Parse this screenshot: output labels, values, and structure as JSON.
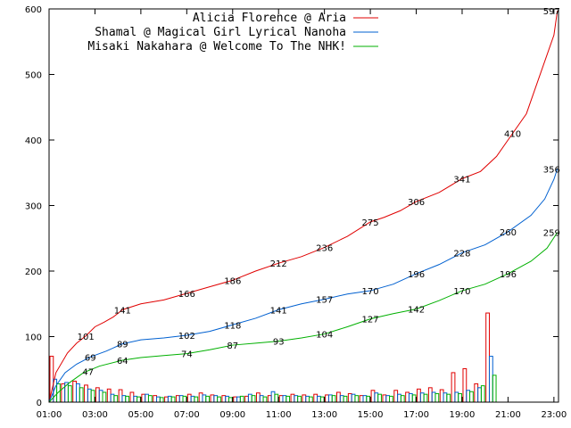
{
  "chart_data": {
    "type": "line",
    "title": "",
    "xlabel": "",
    "ylabel": "",
    "xlim_hours": [
      1,
      23.2
    ],
    "ylim": [
      0,
      600
    ],
    "x_ticks": [
      "01:00",
      "03:00",
      "05:00",
      "07:00",
      "09:00",
      "11:00",
      "13:00",
      "15:00",
      "17:00",
      "19:00",
      "21:00",
      "23:00"
    ],
    "y_ticks": [
      0,
      100,
      200,
      300,
      400,
      500,
      600
    ],
    "legend_position": "top-right",
    "grid": false,
    "series": [
      {
        "name": "Alicia Florence @ Aria",
        "color": "#e00000",
        "points": [
          [
            1,
            0
          ],
          [
            1.3,
            45
          ],
          [
            1.8,
            75
          ],
          [
            2.2,
            90
          ],
          [
            2.6,
            101
          ],
          [
            3.0,
            115
          ],
          [
            3.4,
            122
          ],
          [
            3.8,
            130
          ],
          [
            4.2,
            141
          ],
          [
            5.0,
            150
          ],
          [
            6.0,
            156
          ],
          [
            7.0,
            166
          ],
          [
            8.0,
            176
          ],
          [
            9.0,
            186
          ],
          [
            10.0,
            200
          ],
          [
            11.0,
            212
          ],
          [
            12.0,
            222
          ],
          [
            13.0,
            236
          ],
          [
            14.0,
            253
          ],
          [
            15.0,
            275
          ],
          [
            15.6,
            282
          ],
          [
            16.3,
            292
          ],
          [
            17.0,
            306
          ],
          [
            18.0,
            320
          ],
          [
            19.0,
            341
          ],
          [
            19.8,
            352
          ],
          [
            20.5,
            375
          ],
          [
            21.2,
            410
          ],
          [
            21.8,
            440
          ],
          [
            22.3,
            490
          ],
          [
            22.7,
            530
          ],
          [
            23.0,
            560
          ],
          [
            23.15,
            597
          ]
        ],
        "labels": [
          [
            2.6,
            101
          ],
          [
            4.2,
            141
          ],
          [
            7.0,
            166
          ],
          [
            9.0,
            186
          ],
          [
            11.0,
            212
          ],
          [
            13.0,
            236
          ],
          [
            15.0,
            275
          ],
          [
            17.0,
            306
          ],
          [
            19.0,
            341
          ],
          [
            21.2,
            410
          ],
          [
            22.9,
            597
          ]
        ]
      },
      {
        "name": "Shamal @ Magical Girl Lyrical Nanoha",
        "color": "#0060d0",
        "points": [
          [
            1,
            0
          ],
          [
            1.3,
            25
          ],
          [
            1.7,
            45
          ],
          [
            2.2,
            58
          ],
          [
            2.8,
            69
          ],
          [
            3.5,
            78
          ],
          [
            4.2,
            89
          ],
          [
            5.0,
            95
          ],
          [
            6.0,
            98
          ],
          [
            7.0,
            102
          ],
          [
            8.0,
            108
          ],
          [
            9.0,
            118
          ],
          [
            10.0,
            128
          ],
          [
            11.0,
            141
          ],
          [
            12.0,
            150
          ],
          [
            13.0,
            157
          ],
          [
            14.0,
            165
          ],
          [
            15.0,
            170
          ],
          [
            16.0,
            180
          ],
          [
            17.0,
            196
          ],
          [
            18.0,
            210
          ],
          [
            19.0,
            228
          ],
          [
            20.0,
            240
          ],
          [
            21.0,
            260
          ],
          [
            22.0,
            285
          ],
          [
            22.6,
            310
          ],
          [
            23.0,
            340
          ],
          [
            23.15,
            356
          ]
        ],
        "labels": [
          [
            2.8,
            69
          ],
          [
            4.2,
            89
          ],
          [
            7.0,
            102
          ],
          [
            9.0,
            118
          ],
          [
            11.0,
            141
          ],
          [
            13.0,
            157
          ],
          [
            15.0,
            170
          ],
          [
            17.0,
            196
          ],
          [
            19.0,
            228
          ],
          [
            21.0,
            260
          ],
          [
            22.9,
            356
          ]
        ]
      },
      {
        "name": "Misaki Nakahara @ Welcome To The NHK!",
        "color": "#00b000",
        "points": [
          [
            1,
            0
          ],
          [
            1.4,
            15
          ],
          [
            1.9,
            30
          ],
          [
            2.5,
            45
          ],
          [
            3.2,
            55
          ],
          [
            4.2,
            64
          ],
          [
            5.0,
            68
          ],
          [
            6.0,
            71
          ],
          [
            7.0,
            74
          ],
          [
            8.0,
            80
          ],
          [
            9.0,
            87
          ],
          [
            10.0,
            90
          ],
          [
            11.0,
            93
          ],
          [
            12.0,
            98
          ],
          [
            13.0,
            104
          ],
          [
            14.0,
            115
          ],
          [
            15.0,
            127
          ],
          [
            16.0,
            135
          ],
          [
            17.0,
            142
          ],
          [
            18.0,
            155
          ],
          [
            19.0,
            170
          ],
          [
            20.0,
            180
          ],
          [
            21.0,
            196
          ],
          [
            22.0,
            215
          ],
          [
            22.7,
            235
          ],
          [
            23.15,
            259
          ]
        ],
        "labels": [
          [
            2.7,
            47
          ],
          [
            4.2,
            64
          ],
          [
            7.0,
            74
          ],
          [
            9.0,
            87
          ],
          [
            11.0,
            93
          ],
          [
            13.0,
            104
          ],
          [
            15.0,
            127
          ],
          [
            17.0,
            142
          ],
          [
            19.0,
            170
          ],
          [
            21.0,
            196
          ],
          [
            22.9,
            259
          ]
        ]
      }
    ],
    "histogram": {
      "bin_hours": 0.5,
      "start_hour": 1,
      "red": [
        70,
        28,
        32,
        26,
        22,
        20,
        19,
        15,
        12,
        10,
        8,
        10,
        12,
        14,
        11,
        10,
        8,
        9,
        14,
        10,
        10,
        12,
        11,
        12,
        11,
        15,
        13,
        10,
        18,
        11,
        18,
        15,
        20,
        22,
        19,
        45,
        51,
        28,
        136
      ],
      "blue": [
        35,
        30,
        28,
        20,
        18,
        12,
        10,
        9,
        12,
        8,
        9,
        10,
        9,
        11,
        10,
        9,
        8,
        12,
        10,
        16,
        10,
        10,
        9,
        9,
        11,
        10,
        12,
        10,
        14,
        10,
        12,
        13,
        14,
        15,
        14,
        15,
        18,
        22,
        70
      ],
      "green": [
        28,
        25,
        22,
        18,
        15,
        10,
        9,
        8,
        10,
        7,
        8,
        9,
        8,
        9,
        8,
        7,
        9,
        10,
        8,
        12,
        9,
        9,
        8,
        8,
        10,
        9,
        10,
        9,
        12,
        9,
        10,
        11,
        12,
        13,
        12,
        13,
        16,
        25,
        41
      ]
    }
  }
}
